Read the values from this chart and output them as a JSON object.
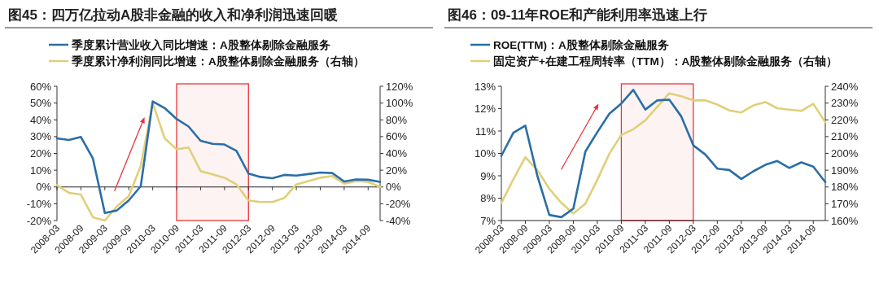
{
  "chart_data": [
    {
      "type": "line",
      "title": "图45：四万亿拉动A股非金融的收入和净利润迅速回暖",
      "legend": "top",
      "categories": [
        "2008-03",
        null,
        "2008-09",
        null,
        "2009-03",
        null,
        "2009-09",
        null,
        "2010-03",
        null,
        "2010-09",
        null,
        "2011-03",
        null,
        "2011-09",
        null,
        "2012-03",
        null,
        "2012-09",
        null,
        "2013-03",
        null,
        "2013-09",
        null,
        "2014-03",
        null,
        "2014-09",
        null
      ],
      "ylim": [
        -20,
        60
      ],
      "yticks": [
        {
          "value": -20,
          "label": "-20%"
        },
        {
          "value": -10,
          "label": "-10%"
        },
        {
          "value": 0,
          "label": "0%"
        },
        {
          "value": 10,
          "label": "10%"
        },
        {
          "value": 20,
          "label": "20%"
        },
        {
          "value": 30,
          "label": "30%"
        },
        {
          "value": 40,
          "label": "40%"
        },
        {
          "value": 50,
          "label": "50%"
        },
        {
          "value": 60,
          "label": "60%"
        }
      ],
      "y2lim": [
        -40,
        120
      ],
      "y2ticks": [
        {
          "value": -40,
          "label": "-40%"
        },
        {
          "value": -20,
          "label": "-20%"
        },
        {
          "value": 0,
          "label": "0%"
        },
        {
          "value": 20,
          "label": "20%"
        },
        {
          "value": 40,
          "label": "40%"
        },
        {
          "value": 60,
          "label": "60%"
        },
        {
          "value": 80,
          "label": "80%"
        },
        {
          "value": 100,
          "label": "100%"
        },
        {
          "value": 120,
          "label": "120%"
        }
      ],
      "bands": [
        {
          "axis": "x",
          "from": "2010-09",
          "to": "2012-03",
          "color": "#e8343a"
        }
      ],
      "series": [
        {
          "name": "季度累计营业收入同比增速：A股整体剔除金融服务",
          "color": "#2a6ea8",
          "values": [
            29,
            28,
            29.8,
            17,
            -15.5,
            -14,
            -8,
            0.5,
            51,
            47,
            40.5,
            36,
            27.5,
            25.7,
            25.3,
            21.5,
            8,
            6,
            5.2,
            7.2,
            6.8,
            7.7,
            8.6,
            8.3,
            3.3,
            4.5,
            4.3,
            3
          ]
        },
        {
          "name": "季度累计净利润同比增速：A股整体剔除金融服务（右轴）",
          "color": "#e0cf78",
          "axis": "y2",
          "values": [
            2,
            -7,
            -9,
            -36,
            -40,
            -23,
            -11,
            25,
            100,
            58,
            45,
            47,
            19,
            15,
            11,
            3,
            -16,
            -18,
            -18,
            -13,
            3,
            7,
            11,
            13,
            4,
            7,
            6,
            0
          ]
        }
      ]
    },
    {
      "type": "line",
      "title": "图46：09-11年ROE和产能利用率迅速上行",
      "legend": "top",
      "categories": [
        "2008-03",
        null,
        "2008-09",
        null,
        "2009-03",
        null,
        "2009-09",
        null,
        "2010-03",
        null,
        "2010-09",
        null,
        "2011-03",
        null,
        "2011-09",
        null,
        "2012-03",
        null,
        "2012-09",
        null,
        "2013-03",
        null,
        "2013-09",
        null,
        "2014-03",
        null,
        "2014-09",
        null
      ],
      "ylim": [
        7,
        13
      ],
      "yticks": [
        {
          "value": 7,
          "label": "7%"
        },
        {
          "value": 8,
          "label": "8%"
        },
        {
          "value": 9,
          "label": "9%"
        },
        {
          "value": 10,
          "label": "10%"
        },
        {
          "value": 11,
          "label": "11%"
        },
        {
          "value": 12,
          "label": "12%"
        },
        {
          "value": 13,
          "label": "13%"
        }
      ],
      "y2lim": [
        160,
        240
      ],
      "y2ticks": [
        {
          "value": 160,
          "label": "160%"
        },
        {
          "value": 170,
          "label": "170%"
        },
        {
          "value": 180,
          "label": "180%"
        },
        {
          "value": 190,
          "label": "190%"
        },
        {
          "value": 200,
          "label": "200%"
        },
        {
          "value": 210,
          "label": "210%"
        },
        {
          "value": 220,
          "label": "220%"
        },
        {
          "value": 230,
          "label": "230%"
        },
        {
          "value": 240,
          "label": "240%"
        }
      ],
      "bands": [
        {
          "axis": "x",
          "from": "2010-09",
          "to": "2012-03",
          "color": "#e8343a"
        }
      ],
      "series": [
        {
          "name": "ROE(TTM)：A股整体剔除金融服务",
          "color": "#2a6ea8",
          "values": [
            9.89,
            10.92,
            11.24,
            9.0,
            7.25,
            7.15,
            7.53,
            10.08,
            10.95,
            11.77,
            12.23,
            12.84,
            11.96,
            12.37,
            12.4,
            11.65,
            10.36,
            9.95,
            9.32,
            9.26,
            8.86,
            9.2,
            9.49,
            9.66,
            9.35,
            9.6,
            9.41,
            8.72
          ]
        },
        {
          "name": "固定资产+在建工程周转率（TTM）：A股整体剔除金融服务（右轴）",
          "color": "#e0cf78",
          "axis": "y2",
          "values": [
            170.5,
            184.6,
            197.7,
            190.1,
            178.9,
            170.5,
            164.2,
            170,
            184.3,
            199.8,
            211,
            214.4,
            219.7,
            227.8,
            235.8,
            234.1,
            231.6,
            231.6,
            229.1,
            225.6,
            224.4,
            228.6,
            230.6,
            226.9,
            226.1,
            225.3,
            229.5,
            218.6
          ]
        }
      ]
    }
  ]
}
